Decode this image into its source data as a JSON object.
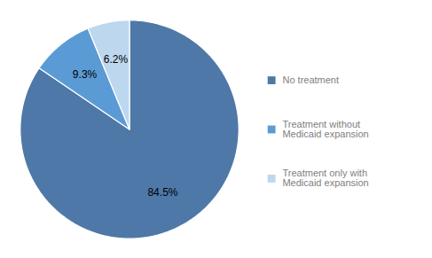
{
  "chart_data": {
    "type": "pie",
    "categories": [
      "No treatment",
      "Treatment without\nMedicaid expansion",
      "Treatment only with\nMedicaid expansion"
    ],
    "values": [
      84.5,
      9.3,
      6.2
    ],
    "value_labels": [
      "84.5%",
      "9.3%",
      "6.2%"
    ],
    "colors": [
      "#4e78a8",
      "#5b9bd5",
      "#bdd7ee"
    ],
    "data_labels": true,
    "legend": "right"
  }
}
